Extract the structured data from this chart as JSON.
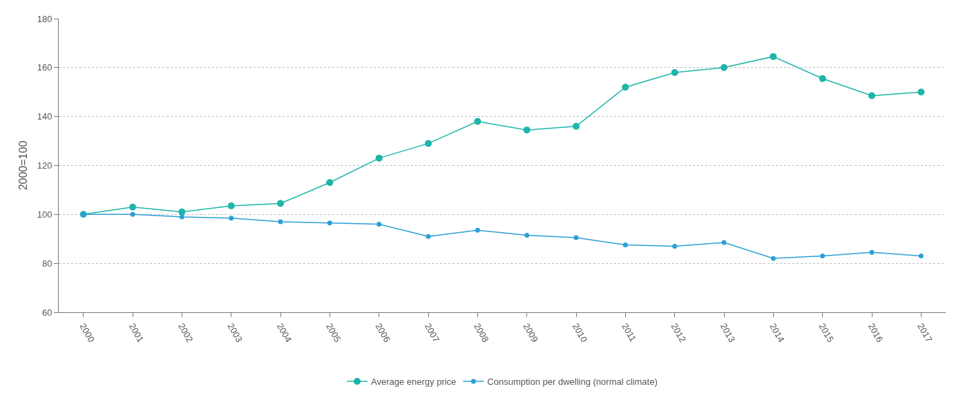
{
  "chart_data": {
    "type": "line",
    "ylabel": "2000=100",
    "categories": [
      "2000",
      "2001",
      "2002",
      "2003",
      "2004",
      "2005",
      "2006",
      "2007",
      "2008",
      "2009",
      "2010",
      "2011",
      "2012",
      "2013",
      "2014",
      "2015",
      "2016",
      "2017"
    ],
    "series": [
      {
        "name": "Average energy price",
        "color": "#1db5a9",
        "values": [
          100,
          103,
          101,
          103.5,
          104.5,
          113,
          123,
          129,
          138,
          134.5,
          136,
          152,
          158,
          160,
          164.5,
          155.5,
          148.5,
          150
        ]
      },
      {
        "name": "Consumption per dwelling (normal climate)",
        "color": "#2b9fd6",
        "values": [
          100,
          100,
          99,
          98.5,
          97,
          96.5,
          96,
          91,
          93.5,
          91.5,
          90.5,
          87.5,
          87,
          88.5,
          82,
          83,
          84.5,
          83
        ]
      }
    ],
    "ylim": [
      60,
      180
    ],
    "yticks": [
      60,
      80,
      100,
      120,
      140,
      160,
      180
    ],
    "grid": "y",
    "legend": "bottom",
    "marker": "circle",
    "line_style": "solid"
  }
}
